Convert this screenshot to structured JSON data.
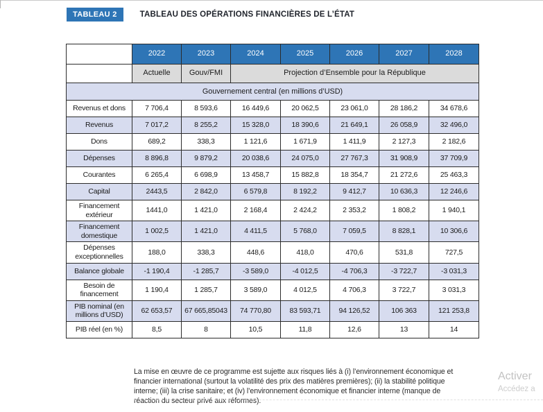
{
  "page": {
    "badge": "TABLEAU 2",
    "title": "TABLEAU DES OPÉRATIONS FINANCIÈRES DE L’ÉTAT"
  },
  "table": {
    "years": [
      "2022",
      "2023",
      "2024",
      "2025",
      "2026",
      "2027",
      "2028"
    ],
    "subheaders": {
      "col_2022": "Actuelle",
      "col_2023": "Gouv/FMI",
      "projection": "Projection d’Ensemble pour la République"
    },
    "section_title": "Gouvernement central (en millions d’USD)",
    "rows": [
      {
        "label": "Revenus et dons",
        "values": [
          "7 706,4",
          "8 593,6",
          "16 449,6",
          "20 062,5",
          "23 061,0",
          "28 186,2",
          "34 678,6"
        ]
      },
      {
        "label": "Revenus",
        "values": [
          "7 017,2",
          "8 255,2",
          "15 328,0",
          "18 390,6",
          "21 649,1",
          "26 058,9",
          "32 496,0"
        ]
      },
      {
        "label": "Dons",
        "values": [
          "689,2",
          "338,3",
          "1 121,6",
          "1 671,9",
          "1 411,9",
          "2 127,3",
          "2 182,6"
        ]
      },
      {
        "label": "Dépenses",
        "values": [
          "8 896,8",
          "9 879,2",
          "20 038,6",
          "24 075,0",
          "27 767,3",
          "31 908,9",
          "37 709,9"
        ]
      },
      {
        "label": "Courantes",
        "values": [
          "6 265,4",
          "6 698,9",
          "13 458,7",
          "15 882,8",
          "18 354,7",
          "21 272,6",
          "25 463,3"
        ]
      },
      {
        "label": "Capital",
        "values": [
          "2443,5",
          "2 842,0",
          "6 579,8",
          "8 192,2",
          "9 412,7",
          "10 636,3",
          "12 246,6"
        ]
      },
      {
        "label": "Financement extérieur",
        "values": [
          "1441,0",
          "1 421,0",
          "2 168,4",
          "2 424,2",
          "2 353,2",
          "1 808,2",
          "1 940,1"
        ]
      },
      {
        "label": "Financement domestique",
        "values": [
          "1 002,5",
          "1 421,0",
          "4 411,5",
          "5 768,0",
          "7 059,5",
          "8 828,1",
          "10 306,6"
        ]
      },
      {
        "label": "Dépenses exceptionnelles",
        "values": [
          "188,0",
          "338,3",
          "448,6",
          "418,0",
          "470,6",
          "531,8",
          "727,5"
        ]
      },
      {
        "label": "Balance globale",
        "values": [
          "-1 190,4",
          "-1 285,7",
          "-3 589,0",
          "-4 012,5",
          "-4 706,3",
          "-3 722,7",
          "-3 031,3"
        ]
      },
      {
        "label": "Besoin de financement",
        "values": [
          "1 190,4",
          "1 285,7",
          "3 589,0",
          "4 012,5",
          "4 706,3",
          "3 722,7",
          "3 031,3"
        ]
      },
      {
        "label": "PIB nominal (en millions d’USD)",
        "values": [
          "62 653,57",
          "67 665,85043",
          "74 770,80",
          "83 593,71",
          "94 126,52",
          "106 363",
          "121 253,8"
        ]
      },
      {
        "label": "PIB réel (en %)",
        "values": [
          "8,5",
          "8",
          "10,5",
          "11,8",
          "12,6",
          "13",
          "14"
        ]
      }
    ]
  },
  "footnote": "La mise en œuvre de ce programme est sujette aux risques liés à (i) l’environnement économique et financier international (surtout la volatilité des prix des matières premières); (ii) la stabilité politique interne; (iii) la crise sanitaire; et (iv) l’environnement économique et financier interne (manque de réaction du secteur privé aux réformes).",
  "watermark": {
    "line1": "Activer",
    "line2": "Accédez a"
  },
  "colors": {
    "header_blue": "#2E75B6",
    "row_shade": "#D7DCEF",
    "subheader_gray": "#DBDBDB",
    "watermark_gray": "#C6C6C6"
  }
}
